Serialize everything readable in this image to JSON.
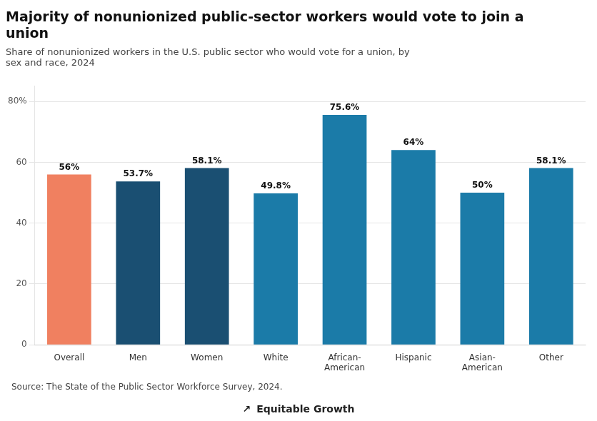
{
  "chart_data": {
    "type": "bar",
    "title": "Majority of nonunionized public-sector workers would vote to join a\nunion",
    "subtitle": "Share of nonunionized workers in the U.S. public sector who would vote for a union, by\nsex and race, 2024",
    "annotations": [
      "Source: The State of the Public Sector Workforce Survey, 2024.",
      "↗",
      "Equitable Growth"
    ],
    "categories": [
      "Overall",
      "Men",
      "Women",
      "White",
      "African-\nAmerican",
      "Hispanic",
      "Asian-\nAmerican",
      "Other"
    ],
    "values": [
      56.0,
      53.7,
      58.1,
      49.8,
      75.6,
      64.0,
      50.0,
      58.1
    ],
    "value_labels": [
      "56%",
      "53.7%",
      "58.1%",
      "49.8%",
      "75.6%",
      "64%",
      "50%",
      "58.1%"
    ],
    "data_labels": true,
    "colors": [
      "#F08060",
      "#1A4F72",
      "#1A4F72",
      "#1B7BA8",
      "#1B7BA8",
      "#1B7BA8",
      "#1B7BA8",
      "#1B7BA8"
    ],
    "ylim": [
      0,
      85
    ],
    "yticks": [
      0,
      20,
      40,
      60,
      {
        "value": 80,
        "label": "80%"
      }
    ],
    "grid": true
  }
}
